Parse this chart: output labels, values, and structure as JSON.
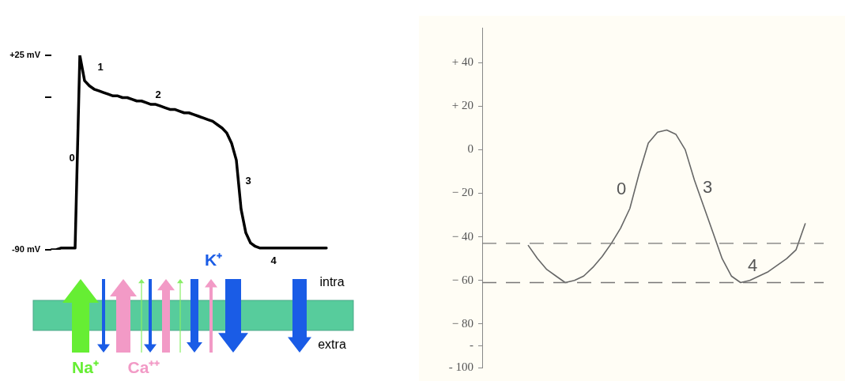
{
  "chart_data": [
    {
      "type": "line",
      "categories": [
        null,
        null,
        null,
        null,
        null,
        null,
        null,
        null,
        null,
        null,
        null,
        null,
        null,
        null,
        null,
        null,
        null,
        null,
        null,
        null,
        null,
        null,
        null,
        null,
        null,
        null,
        null,
        null,
        null,
        null,
        null,
        null,
        null,
        null,
        null,
        null,
        null,
        null,
        null,
        null,
        null,
        null,
        null,
        null,
        null,
        null,
        null,
        null,
        null,
        null,
        null,
        null,
        null,
        null,
        null,
        null,
        null,
        null,
        null
      ],
      "values": [
        -90,
        -90,
        -89,
        -89,
        -89,
        -89,
        25,
        10,
        7,
        5,
        4,
        3,
        2,
        1,
        1,
        0,
        0,
        -1,
        -2,
        -2,
        -3,
        -4,
        -4,
        -5,
        -6,
        -7,
        -7,
        -8,
        -9,
        -9,
        -10,
        -11,
        -12,
        -13,
        -14,
        -16,
        -18,
        -21,
        -27,
        -37,
        -66,
        -80,
        -86,
        -88,
        -89,
        -89,
        -89,
        -89,
        -89,
        -89,
        -89,
        -89,
        -89,
        -89,
        -89,
        -89,
        -89,
        -89,
        -89
      ],
      "color": "#000000",
      "marker": "none",
      "tick_labels": "y",
      "ylim": [
        -90,
        25
      ],
      "yticks": [
        {
          "value": 25,
          "label": "+25 mV"
        },
        {
          "value": 0,
          "label": null
        },
        {
          "value": -90,
          "label": "-90 mV"
        }
      ],
      "annotations": [
        "0",
        "1",
        "2",
        "3",
        "4",
        "Na⁺",
        "Ca⁺⁺",
        "K⁺",
        "intra",
        "extra"
      ]
    },
    {
      "type": "line",
      "categories": [
        null,
        null,
        null,
        null,
        null,
        null,
        null,
        null,
        null,
        null,
        null,
        null,
        null,
        null,
        null,
        null,
        null,
        null,
        null,
        null,
        null,
        null,
        null,
        null,
        null,
        null,
        null,
        null,
        null,
        null,
        null,
        null,
        null,
        null,
        null,
        null,
        null,
        null
      ],
      "values": [
        null,
        null,
        null,
        null,
        null,
        -44,
        -50,
        -55,
        -58,
        -61,
        -60,
        -58,
        -54,
        -49,
        -43,
        -36,
        -27,
        -11,
        3,
        8,
        9,
        7,
        0,
        -14,
        -26,
        -38,
        -50,
        -58,
        -61,
        -60,
        -58,
        -56,
        -53,
        -50,
        -46,
        -34,
        null,
        null
      ],
      "color": "#666666",
      "marker": "none",
      "tick_labels": "y",
      "ylim": [
        -100,
        56
      ],
      "yticks": [
        {
          "value": 40,
          "label": "+ 40"
        },
        {
          "value": 20,
          "label": "+ 20"
        },
        0,
        {
          "value": -20,
          "label": "− 20"
        },
        {
          "value": -40,
          "label": "− 40"
        },
        {
          "value": -60,
          "label": "− 60"
        },
        {
          "value": -80,
          "label": "− 80"
        },
        {
          "value": -90,
          "label": "-"
        },
        {
          "value": -100,
          "label": "- 100"
        }
      ],
      "ref_lines": [
        {
          "axis": "y",
          "value": -43,
          "line_style": "dashed",
          "color": "#777777"
        },
        {
          "axis": "y",
          "value": -61,
          "line_style": "dashed",
          "color": "#777777"
        }
      ],
      "annotations": [
        "0",
        "3",
        "4"
      ]
    }
  ]
}
